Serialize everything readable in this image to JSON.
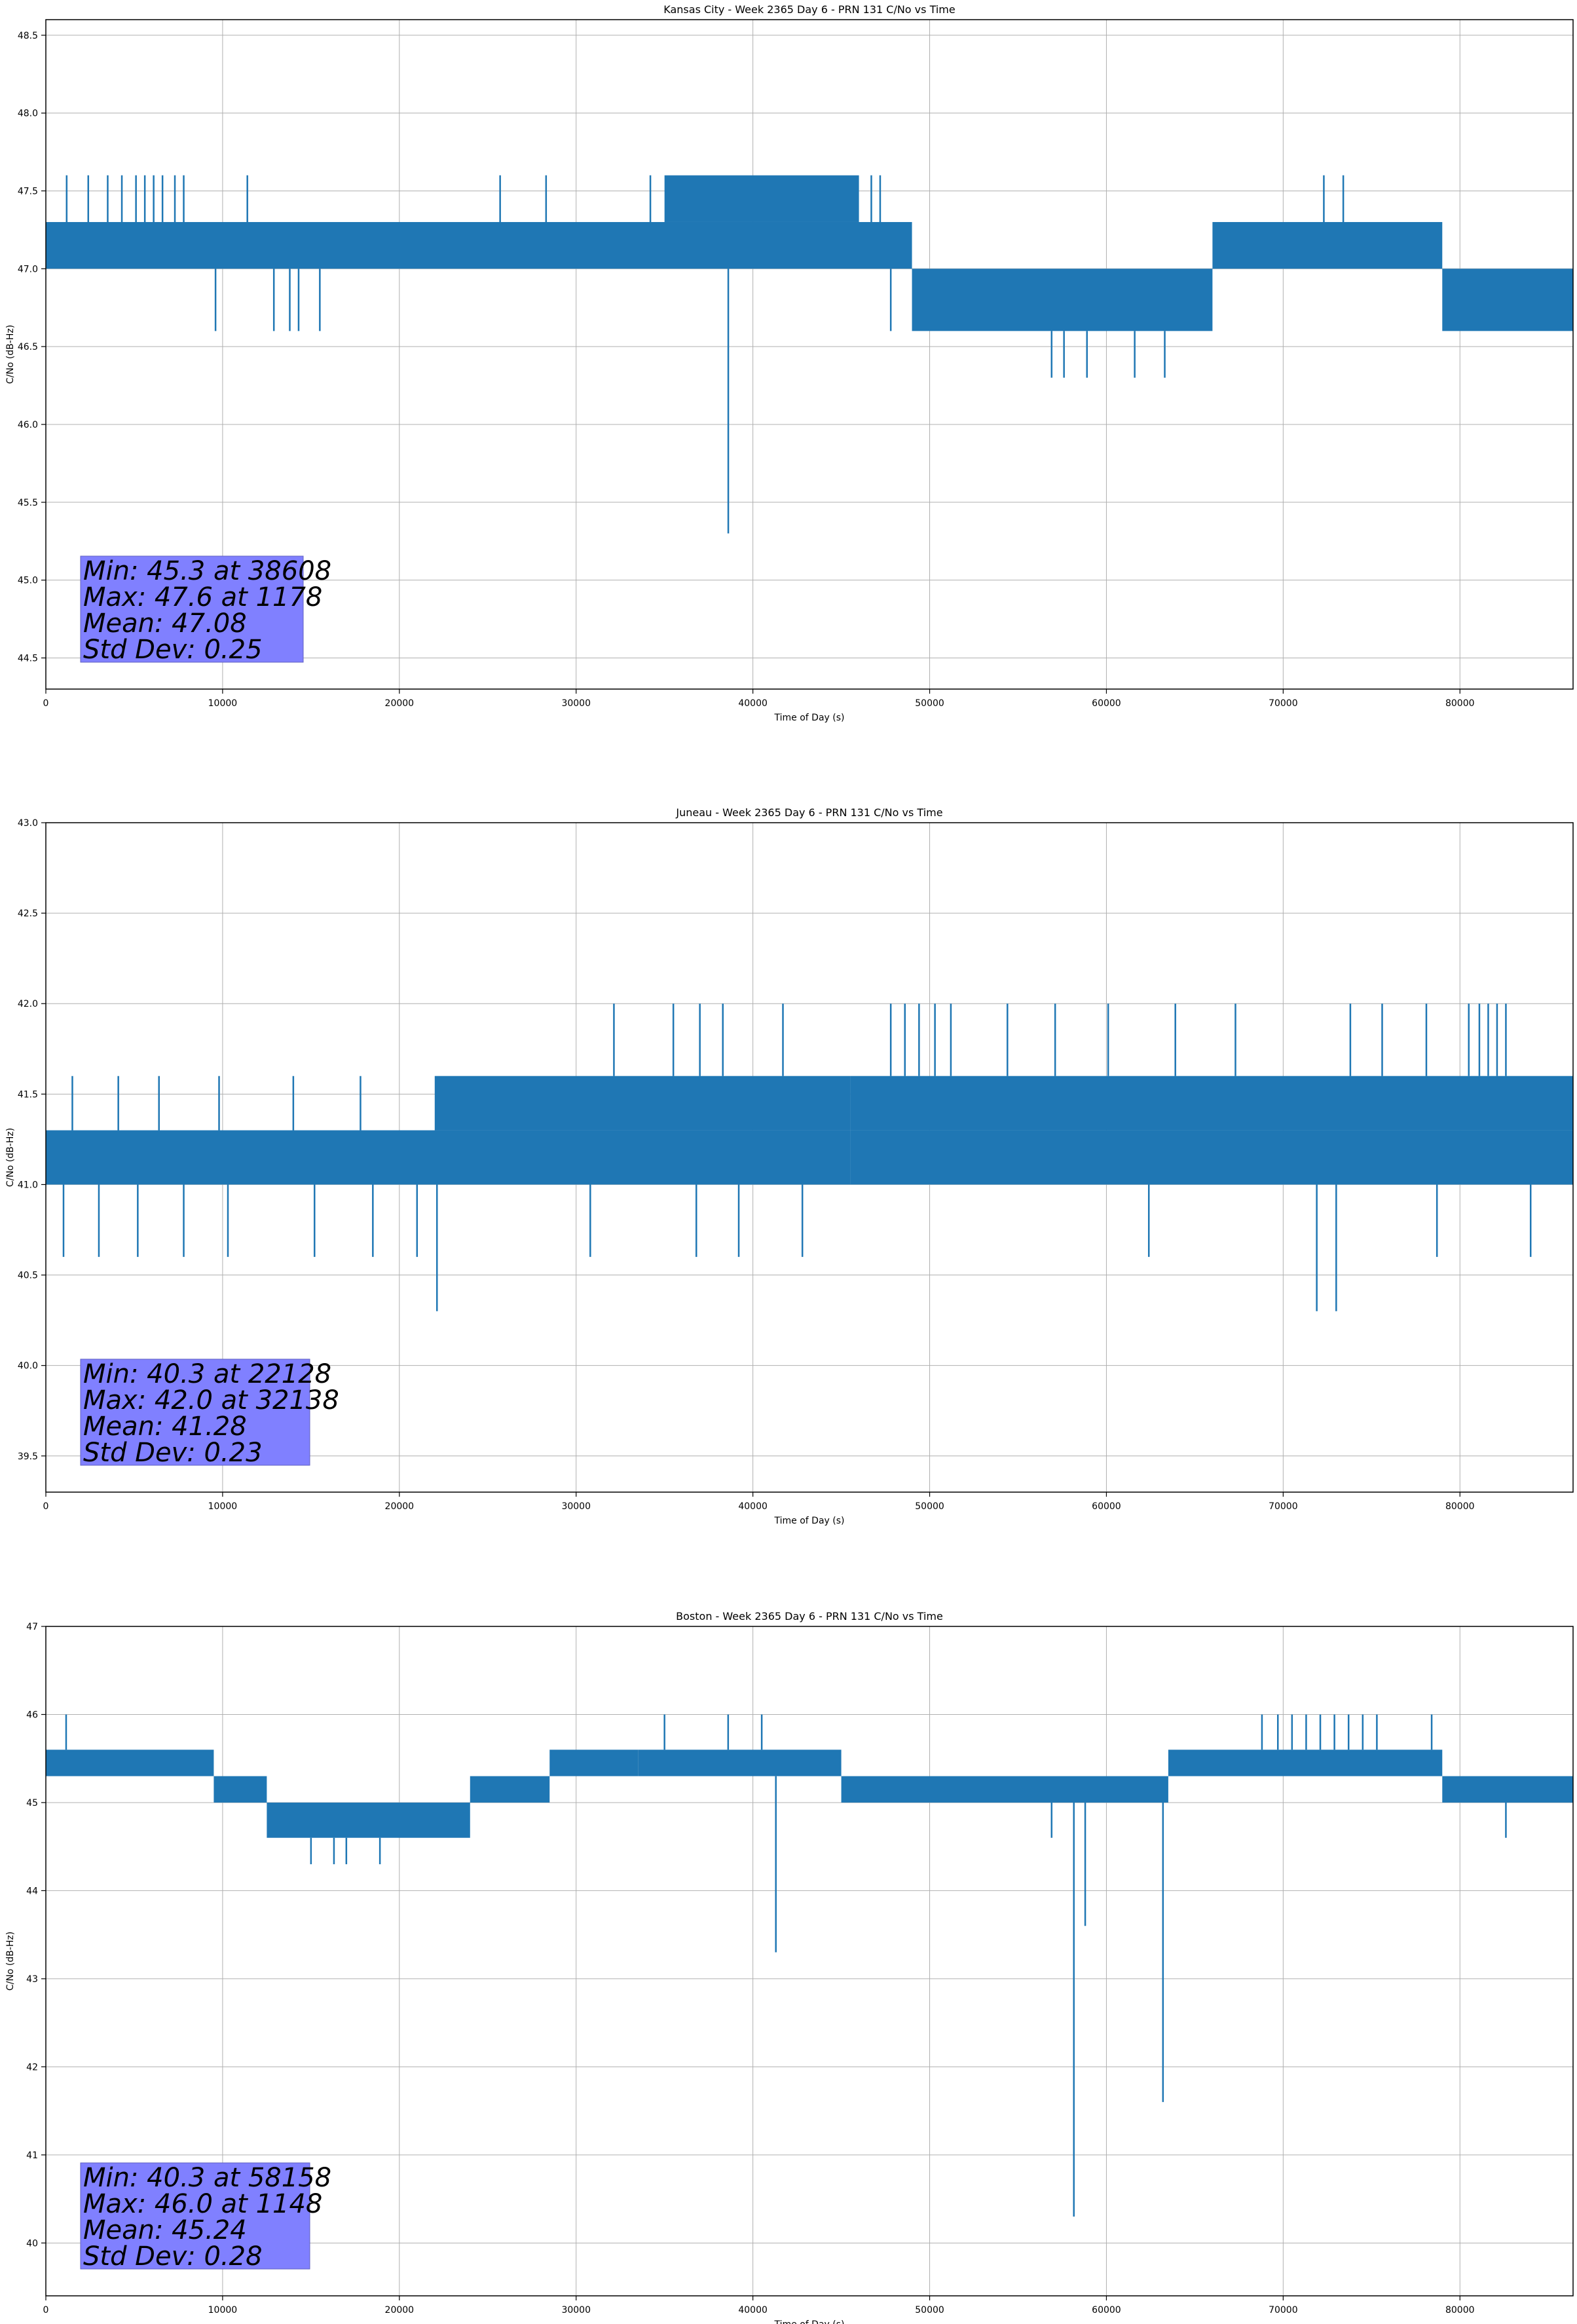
{
  "chart_data": [
    {
      "type": "line",
      "title": "Kansas City - Week 2365 Day 6 - PRN 131 C/No vs Time",
      "xlabel": "Time of Day (s)",
      "ylabel": "C/No (dB-Hz)",
      "xlim": [
        0,
        86400
      ],
      "ylim": [
        44.3,
        48.6
      ],
      "xticks": [
        0,
        10000,
        20000,
        30000,
        40000,
        50000,
        60000,
        70000,
        80000
      ],
      "yticks": [
        44.5,
        45.0,
        45.5,
        46.0,
        46.5,
        47.0,
        47.5,
        48.0,
        48.5
      ],
      "ytick_labels": [
        "44.5",
        "45.0",
        "45.5",
        "46.0",
        "46.5",
        "47.0",
        "47.5",
        "48.0",
        "48.5"
      ],
      "grid": true,
      "color": "#1f77b4",
      "stats": [
        "Min: 45.3 at 38608",
        "Max: 47.6 at 1178",
        "Mean: 47.08",
        "Std Dev: 0.25"
      ],
      "series": [
        {
          "bands": [
            {
              "x0": 0,
              "x1": 49000,
              "y0": 47.0,
              "y1": 47.3
            },
            {
              "x0": 35000,
              "x1": 46000,
              "y0": 47.3,
              "y1": 47.6
            },
            {
              "x0": 49000,
              "x1": 66000,
              "y0": 46.6,
              "y1": 47.0
            },
            {
              "x0": 66000,
              "x1": 79000,
              "y0": 47.0,
              "y1": 47.3
            },
            {
              "x0": 79000,
              "x1": 86400,
              "y0": 46.6,
              "y1": 47.0
            }
          ],
          "spikes": [
            {
              "x": 1178,
              "y0": 47.3,
              "y1": 47.6
            },
            {
              "x": 2400,
              "y0": 47.3,
              "y1": 47.6
            },
            {
              "x": 3500,
              "y0": 47.3,
              "y1": 47.6
            },
            {
              "x": 4300,
              "y0": 47.3,
              "y1": 47.6
            },
            {
              "x": 5100,
              "y0": 47.3,
              "y1": 47.6
            },
            {
              "x": 5600,
              "y0": 47.3,
              "y1": 47.6
            },
            {
              "x": 6100,
              "y0": 47.3,
              "y1": 47.6
            },
            {
              "x": 6600,
              "y0": 47.3,
              "y1": 47.6
            },
            {
              "x": 7300,
              "y0": 47.3,
              "y1": 47.6
            },
            {
              "x": 7800,
              "y0": 47.3,
              "y1": 47.6
            },
            {
              "x": 9600,
              "y0": 46.6,
              "y1": 47.0
            },
            {
              "x": 11400,
              "y0": 47.3,
              "y1": 47.6
            },
            {
              "x": 12900,
              "y0": 46.6,
              "y1": 47.0
            },
            {
              "x": 13800,
              "y0": 46.6,
              "y1": 47.0
            },
            {
              "x": 14300,
              "y0": 46.6,
              "y1": 47.0
            },
            {
              "x": 15500,
              "y0": 46.6,
              "y1": 47.0
            },
            {
              "x": 25700,
              "y0": 47.3,
              "y1": 47.6
            },
            {
              "x": 28300,
              "y0": 47.3,
              "y1": 47.6
            },
            {
              "x": 34200,
              "y0": 47.3,
              "y1": 47.6
            },
            {
              "x": 38608,
              "y0": 45.3,
              "y1": 47.0
            },
            {
              "x": 46700,
              "y0": 47.3,
              "y1": 47.6
            },
            {
              "x": 47200,
              "y0": 47.3,
              "y1": 47.6
            },
            {
              "x": 47800,
              "y0": 46.6,
              "y1": 47.0
            },
            {
              "x": 56900,
              "y0": 46.3,
              "y1": 46.6
            },
            {
              "x": 57600,
              "y0": 46.3,
              "y1": 46.6
            },
            {
              "x": 58900,
              "y0": 46.3,
              "y1": 46.6
            },
            {
              "x": 61600,
              "y0": 46.3,
              "y1": 46.6
            },
            {
              "x": 63300,
              "y0": 46.3,
              "y1": 46.6
            },
            {
              "x": 72300,
              "y0": 47.3,
              "y1": 47.6
            },
            {
              "x": 73400,
              "y0": 47.3,
              "y1": 47.6
            }
          ]
        }
      ]
    },
    {
      "type": "line",
      "title": "Juneau - Week 2365 Day 6 - PRN 131 C/No vs Time",
      "xlabel": "Time of Day (s)",
      "ylabel": "C/No (dB-Hz)",
      "xlim": [
        0,
        86400
      ],
      "ylim": [
        39.3,
        43.0
      ],
      "xticks": [
        0,
        10000,
        20000,
        30000,
        40000,
        50000,
        60000,
        70000,
        80000
      ],
      "yticks": [
        39.5,
        40.0,
        40.5,
        41.0,
        41.5,
        42.0,
        42.5,
        43.0
      ],
      "ytick_labels": [
        "39.5",
        "40.0",
        "40.5",
        "41.0",
        "41.5",
        "42.0",
        "42.5",
        "43.0"
      ],
      "grid": true,
      "color": "#1f77b4",
      "stats": [
        "Min: 40.3 at 22128",
        "Max: 42.0 at 32138",
        "Mean: 41.28",
        "Std Dev: 0.23"
      ],
      "series": [
        {
          "bands": [
            {
              "x0": 0,
              "x1": 45500,
              "y0": 41.0,
              "y1": 41.3
            },
            {
              "x0": 22000,
              "x1": 45500,
              "y0": 41.3,
              "y1": 41.6
            },
            {
              "x0": 45500,
              "x1": 86400,
              "y0": 41.3,
              "y1": 41.6
            },
            {
              "x0": 45500,
              "x1": 86400,
              "y0": 41.0,
              "y1": 41.3
            }
          ],
          "spikes": [
            {
              "x": 22128,
              "y0": 40.3,
              "y1": 41.0
            },
            {
              "x": 32138,
              "y0": 41.6,
              "y1": 42.0
            },
            {
              "x": 35500,
              "y0": 41.6,
              "y1": 42.0
            },
            {
              "x": 37000,
              "y0": 41.6,
              "y1": 42.0
            },
            {
              "x": 38300,
              "y0": 41.6,
              "y1": 42.0
            },
            {
              "x": 41700,
              "y0": 41.6,
              "y1": 42.0
            },
            {
              "x": 47800,
              "y0": 41.6,
              "y1": 42.0
            },
            {
              "x": 48600,
              "y0": 41.6,
              "y1": 42.0
            },
            {
              "x": 49400,
              "y0": 41.6,
              "y1": 42.0
            },
            {
              "x": 50300,
              "y0": 41.6,
              "y1": 42.0
            },
            {
              "x": 51200,
              "y0": 41.6,
              "y1": 42.0
            },
            {
              "x": 54400,
              "y0": 41.6,
              "y1": 42.0
            },
            {
              "x": 57100,
              "y0": 41.6,
              "y1": 42.0
            },
            {
              "x": 60100,
              "y0": 41.6,
              "y1": 42.0
            },
            {
              "x": 63900,
              "y0": 41.6,
              "y1": 42.0
            },
            {
              "x": 67300,
              "y0": 41.6,
              "y1": 42.0
            },
            {
              "x": 73800,
              "y0": 41.6,
              "y1": 42.0
            },
            {
              "x": 75600,
              "y0": 41.6,
              "y1": 42.0
            },
            {
              "x": 78100,
              "y0": 41.6,
              "y1": 42.0
            },
            {
              "x": 80500,
              "y0": 41.6,
              "y1": 42.0
            },
            {
              "x": 81100,
              "y0": 41.6,
              "y1": 42.0
            },
            {
              "x": 81600,
              "y0": 41.6,
              "y1": 42.0
            },
            {
              "x": 82100,
              "y0": 41.6,
              "y1": 42.0
            },
            {
              "x": 82600,
              "y0": 41.6,
              "y1": 42.0
            },
            {
              "x": 71900,
              "y0": 40.3,
              "y1": 41.0
            },
            {
              "x": 73000,
              "y0": 40.3,
              "y1": 41.0
            },
            {
              "x": 1000,
              "y0": 40.6,
              "y1": 41.0
            },
            {
              "x": 3000,
              "y0": 40.6,
              "y1": 41.0
            },
            {
              "x": 5200,
              "y0": 40.6,
              "y1": 41.0
            },
            {
              "x": 7800,
              "y0": 40.6,
              "y1": 41.0
            },
            {
              "x": 10300,
              "y0": 40.6,
              "y1": 41.0
            },
            {
              "x": 15200,
              "y0": 40.6,
              "y1": 41.0
            },
            {
              "x": 18500,
              "y0": 40.6,
              "y1": 41.0
            },
            {
              "x": 21000,
              "y0": 40.6,
              "y1": 41.0
            },
            {
              "x": 30800,
              "y0": 40.6,
              "y1": 41.0
            },
            {
              "x": 36800,
              "y0": 40.6,
              "y1": 41.0
            },
            {
              "x": 39200,
              "y0": 40.6,
              "y1": 41.0
            },
            {
              "x": 42800,
              "y0": 40.6,
              "y1": 41.0
            },
            {
              "x": 62400,
              "y0": 40.6,
              "y1": 41.0
            },
            {
              "x": 78700,
              "y0": 40.6,
              "y1": 41.0
            },
            {
              "x": 84000,
              "y0": 40.6,
              "y1": 41.0
            },
            {
              "x": 1500,
              "y0": 41.3,
              "y1": 41.6
            },
            {
              "x": 4100,
              "y0": 41.3,
              "y1": 41.6
            },
            {
              "x": 6400,
              "y0": 41.3,
              "y1": 41.6
            },
            {
              "x": 9800,
              "y0": 41.3,
              "y1": 41.6
            },
            {
              "x": 14000,
              "y0": 41.3,
              "y1": 41.6
            },
            {
              "x": 17800,
              "y0": 41.3,
              "y1": 41.6
            }
          ]
        }
      ]
    },
    {
      "type": "line",
      "title": "Boston - Week 2365 Day 6 - PRN 131 C/No vs Time",
      "xlabel": "Time of Day (s)",
      "ylabel": "C/No (dB-Hz)",
      "xlim": [
        0,
        86400
      ],
      "ylim": [
        39.4,
        47.0
      ],
      "xticks": [
        0,
        10000,
        20000,
        30000,
        40000,
        50000,
        60000,
        70000,
        80000
      ],
      "yticks": [
        40,
        41,
        42,
        43,
        44,
        45,
        46,
        47
      ],
      "ytick_labels": [
        "40",
        "41",
        "42",
        "43",
        "44",
        "45",
        "46",
        "47"
      ],
      "grid": true,
      "color": "#1f77b4",
      "stats": [
        "Min: 40.3 at 58158",
        "Max: 46.0 at 1148",
        "Mean: 45.24",
        "Std Dev: 0.28"
      ],
      "series": [
        {
          "bands": [
            {
              "x0": 0,
              "x1": 9500,
              "y0": 45.3,
              "y1": 45.6
            },
            {
              "x0": 9500,
              "x1": 12500,
              "y0": 45.0,
              "y1": 45.3
            },
            {
              "x0": 12500,
              "x1": 24000,
              "y0": 44.6,
              "y1": 45.0
            },
            {
              "x0": 24000,
              "x1": 28500,
              "y0": 45.0,
              "y1": 45.3
            },
            {
              "x0": 28500,
              "x1": 33500,
              "y0": 45.3,
              "y1": 45.6
            },
            {
              "x0": 33500,
              "x1": 45000,
              "y0": 45.3,
              "y1": 45.6
            },
            {
              "x0": 45000,
              "x1": 63500,
              "y0": 45.0,
              "y1": 45.3
            },
            {
              "x0": 63500,
              "x1": 79000,
              "y0": 45.3,
              "y1": 45.6
            },
            {
              "x0": 79000,
              "x1": 86400,
              "y0": 45.0,
              "y1": 45.3
            }
          ],
          "spikes": [
            {
              "x": 1148,
              "y0": 45.6,
              "y1": 46.0
            },
            {
              "x": 15000,
              "y0": 44.3,
              "y1": 44.6
            },
            {
              "x": 16300,
              "y0": 44.3,
              "y1": 44.6
            },
            {
              "x": 17000,
              "y0": 44.3,
              "y1": 44.6
            },
            {
              "x": 18900,
              "y0": 44.3,
              "y1": 44.6
            },
            {
              "x": 35000,
              "y0": 45.6,
              "y1": 46.0
            },
            {
              "x": 38600,
              "y0": 45.6,
              "y1": 46.0
            },
            {
              "x": 40500,
              "y0": 45.6,
              "y1": 46.0
            },
            {
              "x": 41300,
              "y0": 43.3,
              "y1": 45.3
            },
            {
              "x": 56900,
              "y0": 44.6,
              "y1": 45.0
            },
            {
              "x": 58158,
              "y0": 40.3,
              "y1": 45.0
            },
            {
              "x": 58800,
              "y0": 43.6,
              "y1": 45.0
            },
            {
              "x": 63200,
              "y0": 41.6,
              "y1": 45.0
            },
            {
              "x": 68800,
              "y0": 45.6,
              "y1": 46.0
            },
            {
              "x": 69700,
              "y0": 45.6,
              "y1": 46.0
            },
            {
              "x": 70500,
              "y0": 45.6,
              "y1": 46.0
            },
            {
              "x": 71300,
              "y0": 45.6,
              "y1": 46.0
            },
            {
              "x": 72100,
              "y0": 45.6,
              "y1": 46.0
            },
            {
              "x": 72900,
              "y0": 45.6,
              "y1": 46.0
            },
            {
              "x": 73700,
              "y0": 45.6,
              "y1": 46.0
            },
            {
              "x": 74500,
              "y0": 45.6,
              "y1": 46.0
            },
            {
              "x": 75300,
              "y0": 45.6,
              "y1": 46.0
            },
            {
              "x": 78400,
              "y0": 45.6,
              "y1": 46.0
            },
            {
              "x": 82600,
              "y0": 44.6,
              "y1": 45.0
            }
          ]
        }
      ]
    }
  ]
}
